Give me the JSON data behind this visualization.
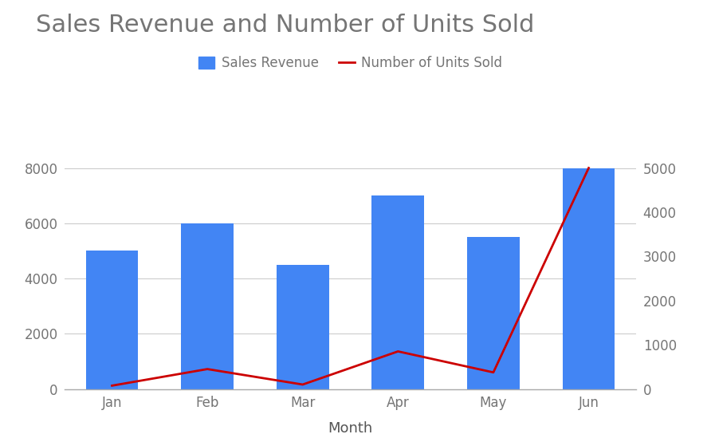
{
  "categories": [
    "Jan",
    "Feb",
    "Mar",
    "Apr",
    "May",
    "Jun"
  ],
  "sales_revenue": [
    5000,
    6000,
    4500,
    7000,
    5500,
    8000
  ],
  "units_sold": [
    75,
    450,
    100,
    850,
    375,
    5000
  ],
  "bar_color": "#4285F4",
  "line_color": "#CC0000",
  "title": "Sales Revenue and Number of Units Sold",
  "title_fontsize": 22,
  "title_color": "#757575",
  "xlabel": "Month",
  "xlabel_fontsize": 13,
  "xlabel_color": "#555555",
  "left_ylim": [
    0,
    9600
  ],
  "right_ylim": [
    0,
    6000
  ],
  "left_yticks": [
    0,
    2000,
    4000,
    6000,
    8000
  ],
  "right_yticks": [
    0,
    1000,
    2000,
    3000,
    4000,
    5000
  ],
  "tick_color": "#757575",
  "tick_fontsize": 12,
  "legend_label_bar": "Sales Revenue",
  "legend_label_line": "Number of Units Sold",
  "legend_fontsize": 12,
  "background_color": "#ffffff",
  "grid_color": "#cccccc",
  "bar_width": 0.55,
  "line_width": 2.0
}
